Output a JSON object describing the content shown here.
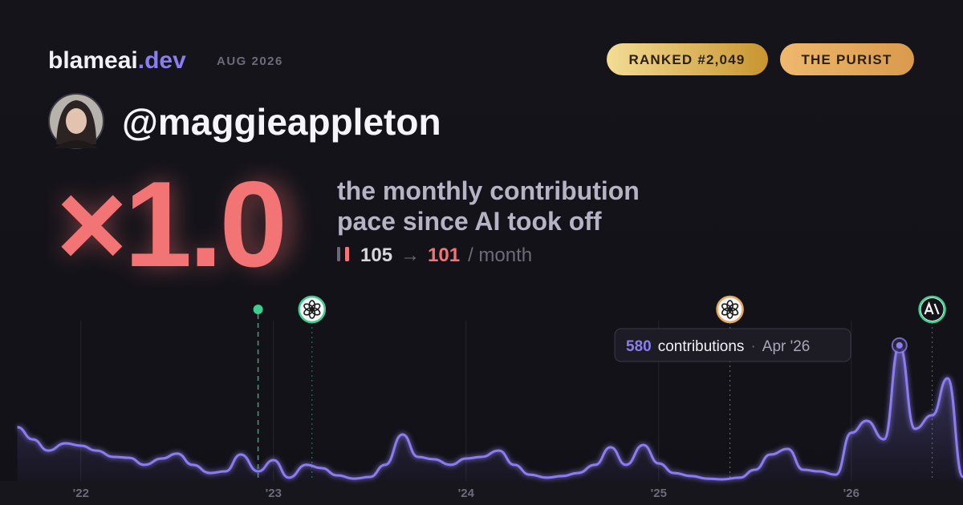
{
  "header": {
    "brand": "blameai",
    "brand_suffix": ".dev",
    "date": "AUG 2026",
    "badges": [
      "RANKED #2,049",
      "THE PURIST"
    ],
    "handle": "@maggieappleton",
    "multiplier": "×1.0",
    "description_lines": [
      "the monthly contribution",
      "pace since AI took off"
    ],
    "before": "105",
    "arrow": "→",
    "after": "101",
    "unit": "/ month"
  },
  "chart_data": {
    "type": "area",
    "color": "#8b7cf0",
    "x": [
      2021.58,
      2021.67,
      2021.75,
      2021.83,
      2021.92,
      2022.0,
      2022.08,
      2022.17,
      2022.25,
      2022.33,
      2022.42,
      2022.5,
      2022.58,
      2022.67,
      2022.75,
      2022.83,
      2022.92,
      2023.0,
      2023.08,
      2023.17,
      2023.25,
      2023.33,
      2023.42,
      2023.5,
      2023.58,
      2023.67,
      2023.75,
      2023.83,
      2023.92,
      2024.0,
      2024.08,
      2024.17,
      2024.25,
      2024.33,
      2024.42,
      2024.5,
      2024.58,
      2024.67,
      2024.75,
      2024.83,
      2024.92,
      2025.0,
      2025.08,
      2025.17,
      2025.25,
      2025.33,
      2025.42,
      2025.5,
      2025.58,
      2025.67,
      2025.75,
      2025.83,
      2025.92,
      2026.0,
      2026.08,
      2026.17,
      2026.25,
      2026.33,
      2026.42,
      2026.5,
      2026.58
    ],
    "values": [
      137,
      230,
      178,
      130,
      161,
      151,
      130,
      103,
      99,
      69,
      96,
      117,
      69,
      34,
      41,
      113,
      41,
      89,
      14,
      69,
      55,
      24,
      10,
      17,
      69,
      199,
      103,
      93,
      69,
      96,
      103,
      130,
      69,
      27,
      14,
      21,
      34,
      69,
      144,
      69,
      154,
      75,
      34,
      21,
      10,
      7,
      14,
      48,
      113,
      137,
      48,
      41,
      27,
      206,
      257,
      178,
      580,
      223,
      281,
      439,
      17
    ],
    "xlim": [
      2021.58,
      2026.58
    ],
    "ylim": [
      0,
      600
    ],
    "xticks": [
      {
        "value": 2022,
        "label": "'22"
      },
      {
        "value": 2023,
        "label": "'23"
      },
      {
        "value": 2024,
        "label": "'24"
      },
      {
        "value": 2025,
        "label": "'25"
      },
      {
        "value": 2026,
        "label": "'26"
      }
    ],
    "grid": true,
    "events": [
      {
        "x": 2022.92,
        "color": "#3ecf8e"
      },
      {
        "x": 2023.2,
        "color": "#3ecf8e"
      },
      {
        "x": 2025.37,
        "color": "#e8a85c"
      },
      {
        "x": 2026.42,
        "color": "#3ecf8e"
      }
    ],
    "tooltip": {
      "index": 56,
      "label": "contributions",
      "separator": "·",
      "date": "Apr '26"
    }
  }
}
